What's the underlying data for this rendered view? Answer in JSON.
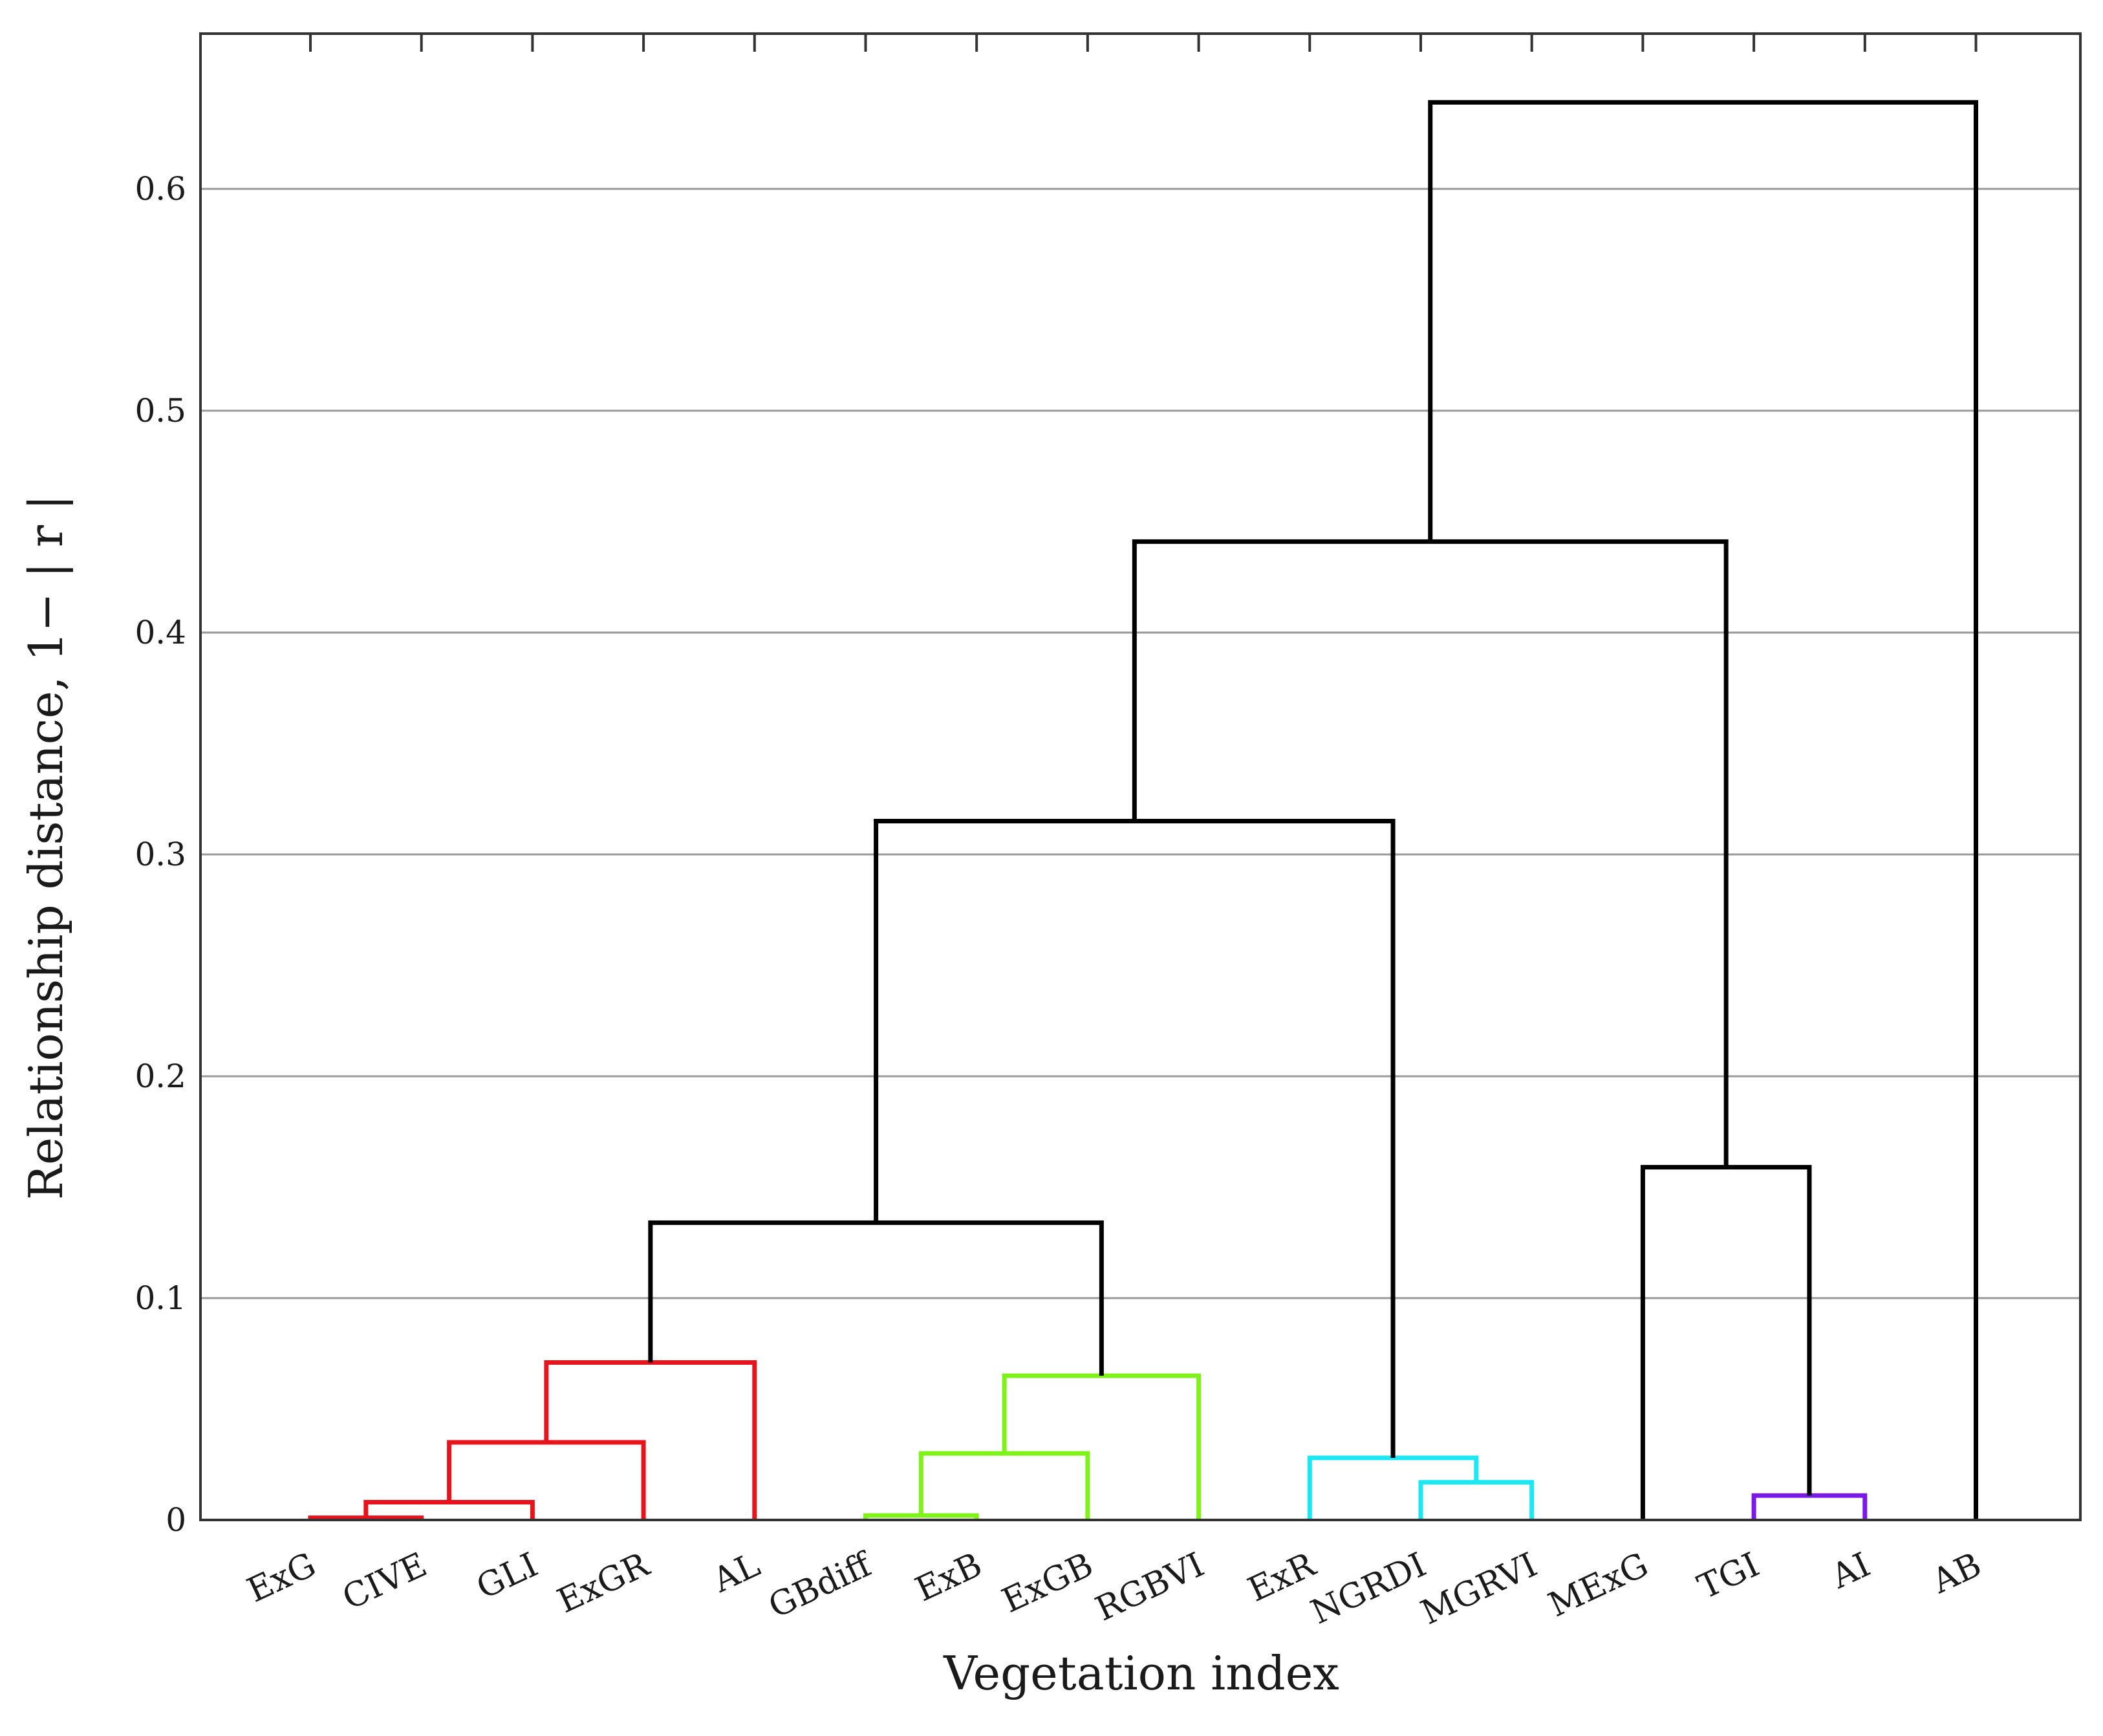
{
  "chart_data": {
    "type": "dendrogram",
    "xlabel": "Vegetation index",
    "ylabel": "Relationship distance, 1− | r |",
    "ylim": [
      0,
      0.65
    ],
    "yticks": [
      0,
      0.1,
      0.2,
      0.3,
      0.4,
      0.5,
      0.6
    ],
    "ytick_labels": [
      "0",
      "0.1",
      "0.2",
      "0.3",
      "0.4",
      "0.5",
      "0.6"
    ],
    "grid": "horizontal",
    "leaves": [
      "ExG",
      "CIVE",
      "GLI",
      "ExGR",
      "AL",
      "GBdiff",
      "ExB",
      "ExGB",
      "RGBVI",
      "ExR",
      "NGRDI",
      "MGRVI",
      "MExG",
      "TGI",
      "AI",
      "AB"
    ],
    "colors": {
      "red": "#e8141c",
      "green": "#7ff21a",
      "cyan": "#1ae8f2",
      "purple": "#7a1ae8",
      "black": "#000000",
      "grid": "#999999",
      "frame": "#333333"
    },
    "links": [
      {
        "left": "ExG",
        "right": "CIVE",
        "height": 0.001,
        "color": "red"
      },
      {
        "left": "ExG+CIVE",
        "right": "GLI",
        "height": 0.008,
        "color": "red"
      },
      {
        "left": "ExG+CIVE+GLI",
        "right": "ExGR",
        "height": 0.035,
        "color": "red"
      },
      {
        "left": "ExG..ExGR",
        "right": "AL",
        "height": 0.071,
        "color": "red"
      },
      {
        "left": "GBdiff",
        "right": "ExB",
        "height": 0.002,
        "color": "green"
      },
      {
        "left": "GBdiff+ExB",
        "right": "ExGB",
        "height": 0.03,
        "color": "green"
      },
      {
        "left": "GBdiff..ExGB",
        "right": "RGBVI",
        "height": 0.065,
        "color": "green"
      },
      {
        "left": "ExG..AL",
        "right": "GBdiff..RGBVI",
        "height": 0.134,
        "color": "black"
      },
      {
        "left": "NGRDI",
        "right": "MGRVI",
        "height": 0.017,
        "color": "cyan"
      },
      {
        "left": "ExR",
        "right": "NGRDI+MGRVI",
        "height": 0.028,
        "color": "cyan"
      },
      {
        "left": "ExG..RGBVI",
        "right": "ExR..MGRVI",
        "height": 0.315,
        "color": "black"
      },
      {
        "left": "TGI",
        "right": "AI",
        "height": 0.011,
        "color": "purple"
      },
      {
        "left": "MExG",
        "right": "TGI+AI",
        "height": 0.159,
        "color": "black"
      },
      {
        "left": "ExG..MGRVI",
        "right": "MExG..AI",
        "height": 0.441,
        "color": "black"
      },
      {
        "left": "ExG..AI",
        "right": "AB",
        "height": 0.639,
        "color": "black"
      }
    ]
  }
}
